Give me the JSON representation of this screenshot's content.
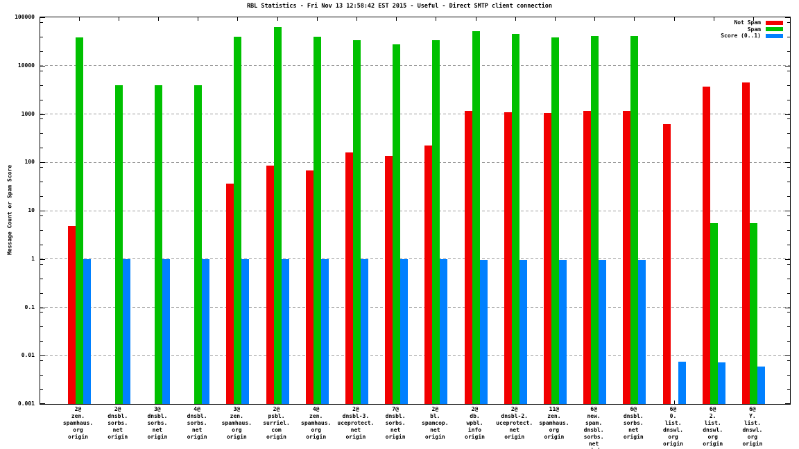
{
  "title": "RBL Statistics - Fri Nov 13 12:58:42 EST 2015 - Useful - Direct SMTP client connection",
  "ylabel": "Message Count or Spam Score",
  "colors": {
    "not_spam": "#f20000",
    "spam": "#00c000",
    "score": "#0080ff",
    "grid": "#9a9a9a"
  },
  "legend": [
    {
      "label": "Not Spam"
    },
    {
      "label": "Spam"
    },
    {
      "label": "Score (0..1)"
    }
  ],
  "chart_data": {
    "type": "bar",
    "yscale": "log",
    "ylim": [
      0.001,
      100000
    ],
    "grid": "dashed horizontal at each decade",
    "legend_position": "top-right inside plot",
    "ytick_labels": [
      "100000",
      "10000",
      "1000",
      "100",
      "10",
      "1",
      "0.1",
      "0.01",
      "0.001"
    ],
    "categories": [
      [
        "2@",
        "zen.",
        "spamhaus.",
        "org",
        "origin"
      ],
      [
        "2@",
        "dnsbl.",
        "sorbs.",
        "net",
        "origin"
      ],
      [
        "3@",
        "dnsbl.",
        "sorbs.",
        "net",
        "origin"
      ],
      [
        "4@",
        "dnsbl.",
        "sorbs.",
        "net",
        "origin"
      ],
      [
        "3@",
        "zen.",
        "spamhaus.",
        "org",
        "origin"
      ],
      [
        "2@",
        "psbl.",
        "surriel.",
        "com",
        "origin"
      ],
      [
        "4@",
        "zen.",
        "spamhaus.",
        "org",
        "origin"
      ],
      [
        "2@",
        "dnsbl-3.",
        "uceprotect.",
        "net",
        "origin"
      ],
      [
        "7@",
        "dnsbl.",
        "sorbs.",
        "net",
        "origin"
      ],
      [
        "2@",
        "bl.",
        "spamcop.",
        "net",
        "origin"
      ],
      [
        "2@",
        "db.",
        "wpbl.",
        "info",
        "origin"
      ],
      [
        "2@",
        "dnsbl-2.",
        "uceprotect.",
        "net",
        "origin"
      ],
      [
        "11@",
        "zen.",
        "spamhaus.",
        "org",
        "origin"
      ],
      [
        "6@",
        "new.",
        "spam.",
        "dnsbl.",
        "sorbs.",
        "net",
        "origin"
      ],
      [
        "6@",
        "dnsbl.",
        "sorbs.",
        "net",
        "origin"
      ],
      [
        "6@",
        "0.",
        "list.",
        "dnswl.",
        "org",
        "origin"
      ],
      [
        "6@",
        "2.",
        "list.",
        "dnswl.",
        "org",
        "origin"
      ],
      [
        "6@",
        "Y.",
        "list.",
        "dnswl.",
        "org",
        "origin"
      ]
    ],
    "series": [
      {
        "name": "Not Spam",
        "color": "#f20000",
        "values": [
          4.8,
          null,
          null,
          null,
          36,
          86,
          68,
          160,
          135,
          220,
          1150,
          1100,
          1050,
          1150,
          1150,
          620,
          3700,
          4500
        ]
      },
      {
        "name": "Spam",
        "color": "#00c000",
        "values": [
          38000,
          3900,
          3900,
          3900,
          40000,
          63000,
          40000,
          34000,
          28000,
          34000,
          52000,
          45000,
          38000,
          41000,
          41000,
          null,
          5.5,
          5.5
        ]
      },
      {
        "name": "Score (0..1)",
        "color": "#0080ff",
        "values": [
          1,
          1,
          1,
          1,
          1,
          1,
          1,
          1,
          1,
          1,
          0.95,
          0.95,
          0.95,
          0.95,
          0.95,
          0.0076,
          0.0073,
          0.006
        ]
      }
    ]
  }
}
